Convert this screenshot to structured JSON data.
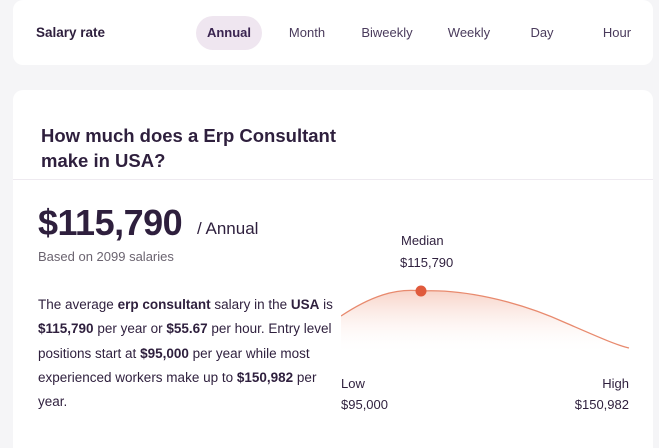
{
  "salary_rate": {
    "title": "Salary rate",
    "tabs": [
      {
        "label": "Annual",
        "active": true
      },
      {
        "label": "Month",
        "active": false
      },
      {
        "label": "Biweekly",
        "active": false
      },
      {
        "label": "Weekly",
        "active": false
      },
      {
        "label": "Day",
        "active": false
      },
      {
        "label": "Hour",
        "active": false
      }
    ]
  },
  "main": {
    "question": "How much does a Erp Consultant make in USA?",
    "salary": "$115,790",
    "period": "/ Annual",
    "based_on": "Based on 2099 salaries",
    "description": {
      "t1": "The average ",
      "job": "erp consultant",
      "t2": " salary in the ",
      "location": "USA",
      "t3": " is ",
      "yearly": "$115,790",
      "t4": " per year or ",
      "hourly": "$55.67",
      "t5": " per hour. Entry level positions start at ",
      "entry": "$95,000",
      "t6": " per year while most experienced workers make up to ",
      "high": "$150,982",
      "t7": " per year."
    }
  },
  "distribution": {
    "median_label": "Median",
    "median_value": "$115,790",
    "low_label": "Low",
    "low_value": "$95,000",
    "high_label": "High",
    "high_value": "$150,982"
  },
  "colors": {
    "accent": "#e05a3c",
    "curve": "#e88a6e",
    "active_tab_bg": "#efe6f0"
  }
}
